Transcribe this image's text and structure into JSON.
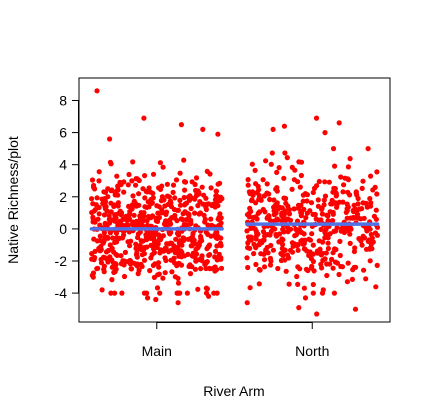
{
  "chart_data": {
    "type": "scatter",
    "xlabel": "River Arm",
    "ylabel": "Native Richness/plot",
    "categories": [
      "Main",
      "North"
    ],
    "ylim": [
      -5.8,
      9.4
    ],
    "yticks": [
      -4,
      -2,
      0,
      2,
      4,
      6,
      8
    ],
    "ytick_labels": [
      "-4",
      "-2",
      "0",
      "2",
      "4",
      "6",
      "8"
    ],
    "grid": false,
    "legend": "none",
    "point_color": "#ff0000",
    "fit_line_color": "#4f73e6",
    "groups": [
      {
        "category": "Main",
        "jitter_halfwidth": 0.42,
        "n_points": 640,
        "center": 0.0,
        "fit": 0.0,
        "extremes": [
          8.6,
          6.9,
          6.5,
          6.2,
          5.9,
          5.6,
          -4.2,
          -4.3,
          -4.4,
          -4.6
        ]
      },
      {
        "category": "North",
        "jitter_halfwidth": 0.42,
        "n_points": 470,
        "center": 0.3,
        "fit": 0.3,
        "extremes": [
          6.9,
          6.6,
          6.4,
          6.2,
          6.0,
          -4.3,
          -4.6,
          -4.9,
          -5.0,
          -5.3
        ]
      }
    ]
  }
}
